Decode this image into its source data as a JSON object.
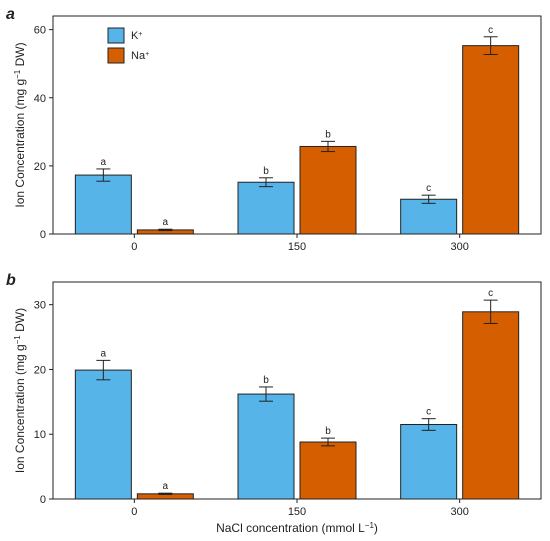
{
  "colors": {
    "K": "#56b4e9",
    "Na": "#d55e00",
    "axis": "#222222"
  },
  "chart_data": [
    {
      "type": "bar",
      "panel_label": "a",
      "categories": [
        "0",
        "150",
        "300"
      ],
      "ylabel": {
        "pre": "Ion Concentration (mg g",
        "sup": "−1",
        "post": " DW)"
      },
      "xlabel": "",
      "ylim": [
        0,
        64
      ],
      "yticks": [
        0,
        20,
        40,
        60
      ],
      "legend": {
        "position": "top-left",
        "items": [
          {
            "series": "K",
            "base": "K",
            "sup": "+"
          },
          {
            "series": "Na",
            "base": "Na",
            "sup": "+"
          }
        ]
      },
      "series": [
        {
          "name": "K",
          "values": [
            17.3,
            15.2,
            10.2
          ],
          "errors": [
            1.8,
            1.3,
            1.2
          ],
          "labels": [
            "a",
            "b",
            "c"
          ]
        },
        {
          "name": "Na",
          "values": [
            1.2,
            25.7,
            55.3
          ],
          "errors": [
            0.2,
            1.5,
            2.6
          ],
          "labels": [
            "a",
            "b",
            "c"
          ]
        }
      ]
    },
    {
      "type": "bar",
      "panel_label": "b",
      "categories": [
        "0",
        "150",
        "300"
      ],
      "ylabel": {
        "pre": "Ion Concentration (mg g",
        "sup": "−1",
        "post": " DW)"
      },
      "xlabel": {
        "pre": "NaCl concentration (mmol L",
        "sup": "−1",
        "post": ")"
      },
      "ylim": [
        0,
        33.5
      ],
      "yticks": [
        0,
        10,
        20,
        30
      ],
      "series": [
        {
          "name": "K",
          "values": [
            19.9,
            16.2,
            11.5
          ],
          "errors": [
            1.5,
            1.1,
            0.9
          ],
          "labels": [
            "a",
            "b",
            "c"
          ]
        },
        {
          "name": "Na",
          "values": [
            0.8,
            8.8,
            28.9
          ],
          "errors": [
            0.1,
            0.6,
            1.8
          ],
          "labels": [
            "a",
            "b",
            "c"
          ]
        }
      ]
    }
  ]
}
